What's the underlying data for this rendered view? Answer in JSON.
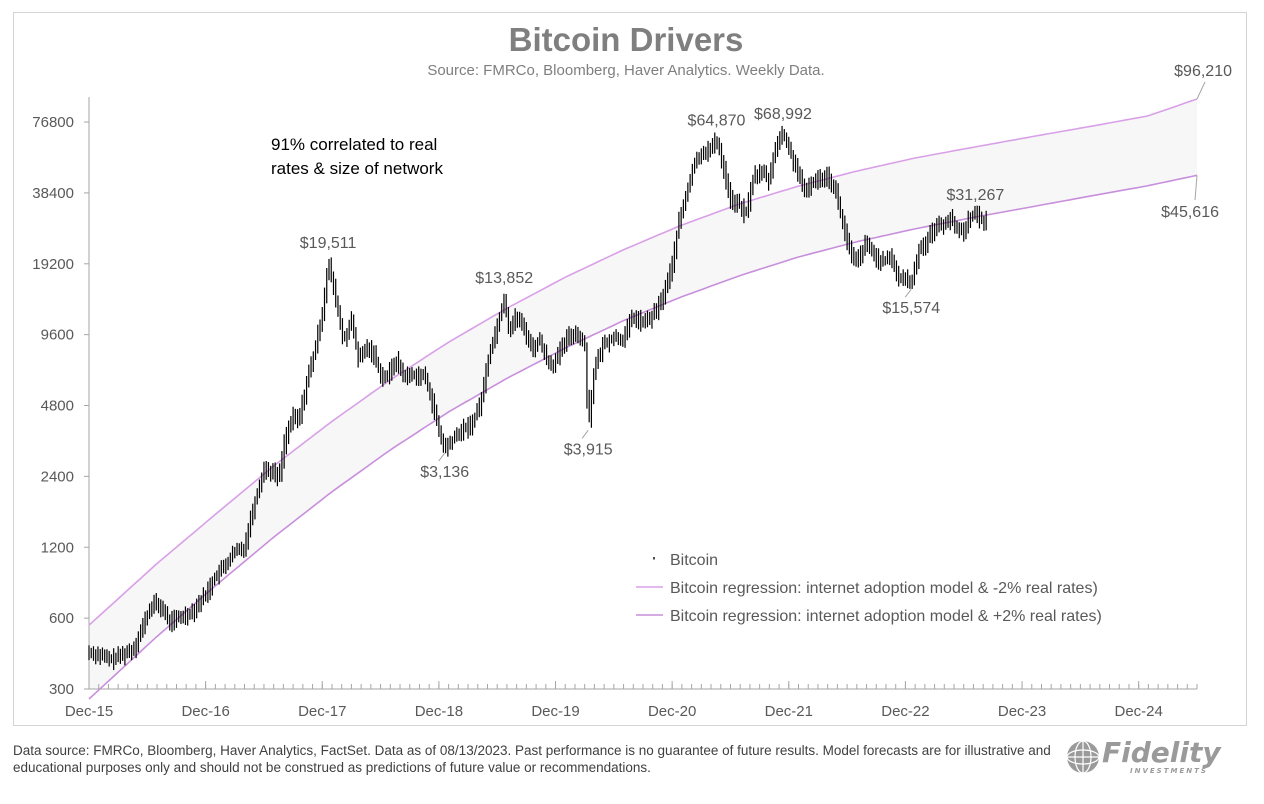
{
  "chart_data": {
    "type": "line",
    "title": "Bitcoin Drivers",
    "subtitle": "Source: FMRCo, Bloomberg, Haver Analytics. Weekly Data.",
    "annotation": [
      "91% correlated to real",
      "rates & size of network"
    ],
    "y_scale": "log2",
    "ylim": [
      300,
      96210
    ],
    "y_ticks": [
      300,
      600,
      1200,
      2400,
      4800,
      9600,
      19200,
      38400,
      76800
    ],
    "y_tick_labels": [
      "300",
      "600",
      "1200",
      "2400",
      "4800",
      "9600",
      "19200",
      "38400",
      "76800"
    ],
    "x_range": [
      2015.92,
      2025.42
    ],
    "x_ticks": [
      2015.92,
      2016.92,
      2017.92,
      2018.92,
      2019.92,
      2020.92,
      2021.92,
      2022.92,
      2023.92,
      2024.92
    ],
    "x_tick_labels": [
      "Dec-15",
      "Dec-16",
      "Dec-17",
      "Dec-18",
      "Dec-19",
      "Dec-20",
      "Dec-21",
      "Dec-22",
      "Dec-23",
      "Dec-24"
    ],
    "series": [
      {
        "name": "Bitcoin",
        "style": "weekly-bars",
        "color": "#000000",
        "points": [
          [
            2015.92,
            430
          ],
          [
            2016.0,
            420
          ],
          [
            2016.1,
            400
          ],
          [
            2016.2,
            420
          ],
          [
            2016.3,
            445
          ],
          [
            2016.42,
            620
          ],
          [
            2016.47,
            700
          ],
          [
            2016.55,
            660
          ],
          [
            2016.6,
            580
          ],
          [
            2016.7,
            605
          ],
          [
            2016.8,
            640
          ],
          [
            2016.92,
            760
          ],
          [
            2017.0,
            900
          ],
          [
            2017.08,
            1000
          ],
          [
            2017.17,
            1150
          ],
          [
            2017.25,
            1200
          ],
          [
            2017.33,
            1800
          ],
          [
            2017.42,
            2600
          ],
          [
            2017.5,
            2500
          ],
          [
            2017.55,
            2400
          ],
          [
            2017.6,
            3500
          ],
          [
            2017.67,
            4300
          ],
          [
            2017.72,
            4200
          ],
          [
            2017.8,
            6500
          ],
          [
            2017.85,
            8000
          ],
          [
            2017.92,
            12000
          ],
          [
            2017.97,
            19511
          ],
          [
            2018.03,
            14000
          ],
          [
            2018.1,
            9000
          ],
          [
            2018.17,
            11000
          ],
          [
            2018.23,
            7500
          ],
          [
            2018.3,
            8500
          ],
          [
            2018.36,
            8000
          ],
          [
            2018.42,
            6500
          ],
          [
            2018.47,
            6300
          ],
          [
            2018.55,
            7500
          ],
          [
            2018.62,
            6400
          ],
          [
            2018.7,
            6500
          ],
          [
            2018.8,
            6400
          ],
          [
            2018.87,
            4800
          ],
          [
            2018.92,
            3700
          ],
          [
            2018.97,
            3136
          ],
          [
            2019.05,
            3500
          ],
          [
            2019.12,
            3800
          ],
          [
            2019.2,
            4000
          ],
          [
            2019.28,
            5000
          ],
          [
            2019.35,
            8000
          ],
          [
            2019.42,
            10500
          ],
          [
            2019.48,
            13852
          ],
          [
            2019.52,
            10000
          ],
          [
            2019.58,
            11500
          ],
          [
            2019.65,
            10200
          ],
          [
            2019.72,
            8300
          ],
          [
            2019.78,
            9200
          ],
          [
            2019.85,
            7400
          ],
          [
            2019.9,
            7200
          ],
          [
            2019.95,
            8000
          ],
          [
            2020.03,
            9500
          ],
          [
            2020.1,
            9800
          ],
          [
            2020.17,
            8600
          ],
          [
            2020.2,
            3915
          ],
          [
            2020.25,
            6800
          ],
          [
            2020.33,
            8800
          ],
          [
            2020.42,
            9400
          ],
          [
            2020.5,
            9200
          ],
          [
            2020.58,
            11500
          ],
          [
            2020.67,
            10800
          ],
          [
            2020.75,
            11500
          ],
          [
            2020.83,
            13500
          ],
          [
            2020.92,
            19000
          ],
          [
            2020.97,
            28000
          ],
          [
            2021.03,
            36000
          ],
          [
            2021.1,
            50000
          ],
          [
            2021.17,
            57000
          ],
          [
            2021.25,
            59000
          ],
          [
            2021.3,
            64870
          ],
          [
            2021.36,
            49000
          ],
          [
            2021.42,
            36000
          ],
          [
            2021.5,
            34000
          ],
          [
            2021.55,
            31000
          ],
          [
            2021.62,
            46000
          ],
          [
            2021.7,
            47000
          ],
          [
            2021.75,
            43000
          ],
          [
            2021.8,
            60000
          ],
          [
            2021.87,
            68992
          ],
          [
            2021.93,
            57000
          ],
          [
            2022.0,
            47000
          ],
          [
            2022.05,
            38000
          ],
          [
            2022.1,
            42000
          ],
          [
            2022.17,
            44000
          ],
          [
            2022.25,
            46000
          ],
          [
            2022.33,
            38000
          ],
          [
            2022.37,
            30000
          ],
          [
            2022.45,
            21000
          ],
          [
            2022.5,
            19500
          ],
          [
            2022.58,
            23500
          ],
          [
            2022.65,
            21000
          ],
          [
            2022.72,
            19500
          ],
          [
            2022.8,
            20500
          ],
          [
            2022.86,
            16500
          ],
          [
            2022.92,
            16800
          ],
          [
            2022.97,
            15574
          ],
          [
            2023.03,
            22000
          ],
          [
            2023.1,
            24000
          ],
          [
            2023.17,
            27500
          ],
          [
            2023.25,
            28500
          ],
          [
            2023.3,
            30000
          ],
          [
            2023.36,
            27000
          ],
          [
            2023.42,
            26500
          ],
          [
            2023.47,
            30500
          ],
          [
            2023.52,
            31267
          ],
          [
            2023.57,
            29500
          ],
          [
            2023.62,
            29300
          ]
        ]
      },
      {
        "name": "Bitcoin regression: internet adoption model & -2% real rates)",
        "color": "#d9a0e8",
        "points": [
          [
            2015.92,
            560
          ],
          [
            2016.5,
            1020
          ],
          [
            2017.0,
            1650
          ],
          [
            2017.5,
            2650
          ],
          [
            2018.0,
            4100
          ],
          [
            2018.5,
            6150
          ],
          [
            2019.0,
            8900
          ],
          [
            2019.5,
            12400
          ],
          [
            2020.0,
            16800
          ],
          [
            2020.5,
            22000
          ],
          [
            2021.0,
            28000
          ],
          [
            2021.5,
            34500
          ],
          [
            2022.0,
            41000
          ],
          [
            2022.5,
            47500
          ],
          [
            2023.0,
            54000
          ],
          [
            2023.5,
            60000
          ],
          [
            2024.0,
            66500
          ],
          [
            2024.5,
            73500
          ],
          [
            2025.0,
            81500
          ],
          [
            2025.42,
            96210
          ]
        ]
      },
      {
        "name": "Bitcoin regression: internet adoption model & +2% real rates)",
        "color": "#c88fdc",
        "points": [
          [
            2015.92,
            272
          ],
          [
            2016.5,
            500
          ],
          [
            2017.0,
            820
          ],
          [
            2017.5,
            1320
          ],
          [
            2018.0,
            2060
          ],
          [
            2018.5,
            3100
          ],
          [
            2019.0,
            4500
          ],
          [
            2019.5,
            6250
          ],
          [
            2020.0,
            8400
          ],
          [
            2020.5,
            11000
          ],
          [
            2021.0,
            13900
          ],
          [
            2021.5,
            17100
          ],
          [
            2022.0,
            20500
          ],
          [
            2022.5,
            23800
          ],
          [
            2023.0,
            27000
          ],
          [
            2023.5,
            30200
          ],
          [
            2024.0,
            33500
          ],
          [
            2024.5,
            37200
          ],
          [
            2025.0,
            41200
          ],
          [
            2025.42,
            45616
          ]
        ]
      }
    ],
    "callouts": [
      {
        "text": "$19,511",
        "x": 2017.97,
        "y": 19511,
        "position": "above"
      },
      {
        "text": "$3,136",
        "x": 2018.97,
        "y": 3136,
        "position": "below"
      },
      {
        "text": "$13,852",
        "x": 2019.48,
        "y": 13852,
        "position": "above"
      },
      {
        "text": "$3,915",
        "x": 2020.2,
        "y": 3915,
        "position": "below"
      },
      {
        "text": "$64,870",
        "x": 2021.3,
        "y": 64870,
        "position": "above"
      },
      {
        "text": "$68,992",
        "x": 2021.87,
        "y": 68992,
        "position": "above"
      },
      {
        "text": "$15,574",
        "x": 2022.97,
        "y": 15574,
        "position": "below"
      },
      {
        "text": "$31,267",
        "x": 2023.52,
        "y": 31267,
        "position": "above"
      },
      {
        "text": "$96,210",
        "x": 2025.42,
        "y": 96210,
        "position": "end-upper"
      },
      {
        "text": "$45,616",
        "x": 2025.42,
        "y": 45616,
        "position": "end-lower"
      }
    ],
    "legend": [
      {
        "label": "Bitcoin",
        "marker": "dot",
        "color": "#000000"
      },
      {
        "label": "Bitcoin regression: internet adoption model & -2% real rates)",
        "marker": "line",
        "color": "#d9a0e8"
      },
      {
        "label": "Bitcoin regression: internet adoption model & +2% real rates)",
        "marker": "line",
        "color": "#c88fdc"
      }
    ],
    "band_fill": "#f7f7f7",
    "axis_color": "#a6a6a6"
  },
  "footer": {
    "text": "Data source: FMRCo, Bloomberg, Haver Analytics, FactSet. Data as of 08/13/2023. Past performance is no guarantee of future results. Model forecasts are for illustrative and educational purposes only and should not be construed as predictions of future value or recommendations."
  },
  "brand": {
    "name": "Fidelity",
    "tagline": "INVESTMENTS",
    "color": "#9a9a9a"
  }
}
